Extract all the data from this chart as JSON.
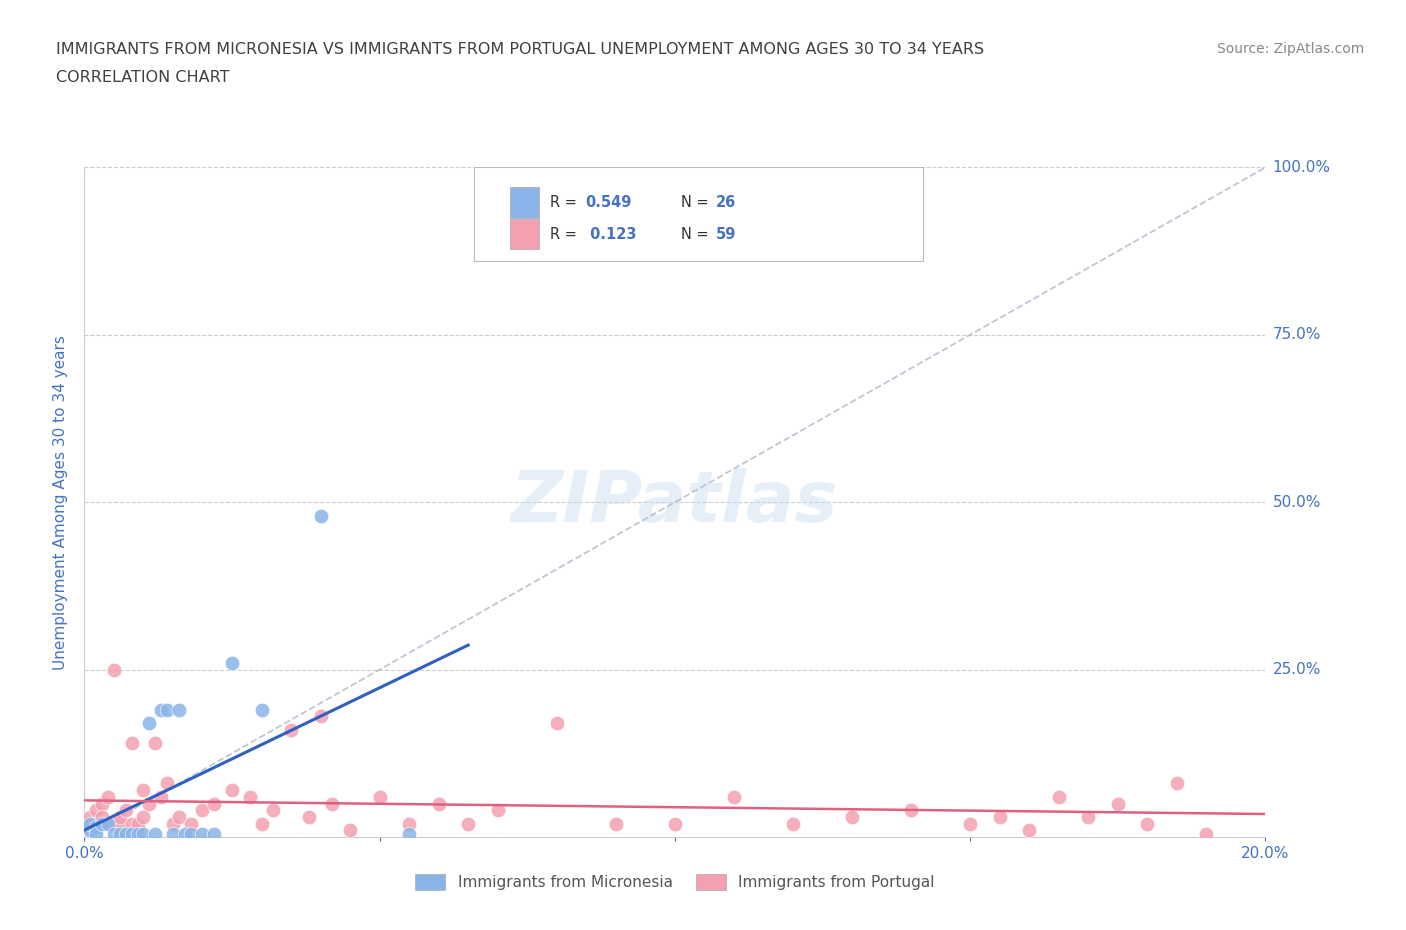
{
  "title_line1": "IMMIGRANTS FROM MICRONESIA VS IMMIGRANTS FROM PORTUGAL UNEMPLOYMENT AMONG AGES 30 TO 34 YEARS",
  "title_line2": "CORRELATION CHART",
  "source_text": "Source: ZipAtlas.com",
  "ylabel": "Unemployment Among Ages 30 to 34 years",
  "xlim": [
    0.0,
    0.2
  ],
  "ylim": [
    0.0,
    1.0
  ],
  "micronesia_color": "#8ab4e8",
  "portugal_color": "#f4a0b0",
  "micronesia_R": 0.549,
  "micronesia_N": 26,
  "portugal_R": 0.123,
  "portugal_N": 59,
  "watermark": "ZIPatlas",
  "micronesia_x": [
    0.001,
    0.001,
    0.002,
    0.002,
    0.003,
    0.004,
    0.005,
    0.006,
    0.007,
    0.008,
    0.009,
    0.01,
    0.011,
    0.012,
    0.013,
    0.014,
    0.015,
    0.016,
    0.017,
    0.018,
    0.02,
    0.022,
    0.025,
    0.03,
    0.04,
    0.055
  ],
  "micronesia_y": [
    0.01,
    0.02,
    0.015,
    0.005,
    0.02,
    0.02,
    0.005,
    0.005,
    0.005,
    0.005,
    0.005,
    0.005,
    0.17,
    0.005,
    0.19,
    0.19,
    0.005,
    0.19,
    0.005,
    0.005,
    0.005,
    0.005,
    0.26,
    0.19,
    0.48,
    0.005
  ],
  "portugal_x": [
    0.001,
    0.001,
    0.001,
    0.002,
    0.002,
    0.003,
    0.003,
    0.003,
    0.004,
    0.004,
    0.005,
    0.005,
    0.006,
    0.006,
    0.007,
    0.008,
    0.008,
    0.009,
    0.01,
    0.01,
    0.011,
    0.012,
    0.013,
    0.014,
    0.015,
    0.016,
    0.018,
    0.02,
    0.022,
    0.025,
    0.028,
    0.03,
    0.032,
    0.035,
    0.038,
    0.04,
    0.042,
    0.045,
    0.05,
    0.055,
    0.06,
    0.065,
    0.07,
    0.08,
    0.09,
    0.1,
    0.11,
    0.12,
    0.13,
    0.14,
    0.15,
    0.155,
    0.16,
    0.165,
    0.17,
    0.175,
    0.18,
    0.185,
    0.19
  ],
  "portugal_y": [
    0.02,
    0.03,
    0.01,
    0.02,
    0.04,
    0.02,
    0.05,
    0.03,
    0.02,
    0.06,
    0.02,
    0.25,
    0.02,
    0.03,
    0.04,
    0.02,
    0.14,
    0.02,
    0.03,
    0.07,
    0.05,
    0.14,
    0.06,
    0.08,
    0.02,
    0.03,
    0.02,
    0.04,
    0.05,
    0.07,
    0.06,
    0.02,
    0.04,
    0.16,
    0.03,
    0.18,
    0.05,
    0.01,
    0.06,
    0.02,
    0.05,
    0.02,
    0.04,
    0.17,
    0.02,
    0.02,
    0.06,
    0.02,
    0.03,
    0.04,
    0.02,
    0.03,
    0.01,
    0.06,
    0.03,
    0.05,
    0.02,
    0.08,
    0.005
  ],
  "background_color": "#ffffff",
  "grid_color": "#cccccc",
  "title_color": "#404040",
  "tick_label_color": "#4472c4"
}
